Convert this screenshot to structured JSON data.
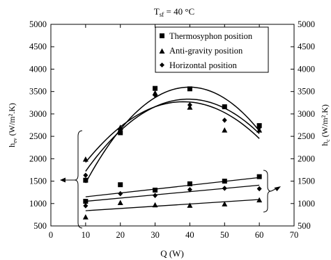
{
  "chart_data": {
    "type": "scatter",
    "title": "T",
    "title_subscript": "sf",
    "title_rest": " = 40 °C",
    "xlabel": "Q (W)",
    "ylabel_left": "h",
    "ylabel_left_sub": "ev",
    "ylabel_left_rest": " (W/m².K)",
    "ylabel_right": "h",
    "ylabel_right_sub": "c",
    "ylabel_right_rest": " (W/m².K)",
    "xlim": [
      0,
      70
    ],
    "ylim": [
      500,
      5000
    ],
    "x_ticks": [
      0,
      10,
      20,
      30,
      40,
      50,
      60,
      70
    ],
    "y_ticks": [
      500,
      1000,
      1500,
      2000,
      2500,
      3000,
      3500,
      4000,
      4500,
      5000
    ],
    "grid": false,
    "legend_position": "top-right",
    "series": [
      {
        "name": "Thermosyphon position",
        "marker": "square",
        "evaporator": {
          "x": [
            10,
            20,
            30,
            40,
            50,
            60
          ],
          "y": [
            1520,
            2580,
            3570,
            3560,
            3160,
            2740
          ]
        },
        "condenser": {
          "x": [
            10,
            20,
            30,
            40,
            50,
            60
          ],
          "y": [
            1050,
            1420,
            1300,
            1440,
            1500,
            1600
          ]
        }
      },
      {
        "name": "Anti-gravity position",
        "marker": "triangle",
        "evaporator": {
          "x": [
            10,
            20,
            30,
            40,
            50,
            60
          ],
          "y": [
            1990,
            2700,
            3470,
            3150,
            2640,
            2640
          ]
        },
        "condenser": {
          "x": [
            10,
            20,
            30,
            40,
            50,
            60
          ],
          "y": [
            700,
            1020,
            970,
            960,
            990,
            1080
          ]
        }
      },
      {
        "name": "Horizontal position",
        "marker": "diamond",
        "evaporator": {
          "x": [
            10,
            20,
            30,
            40,
            50,
            60
          ],
          "y": [
            1630,
            2650,
            3420,
            3200,
            2860,
            2700
          ]
        },
        "condenser": {
          "x": [
            10,
            20,
            30,
            40,
            50,
            60
          ],
          "y": [
            950,
            1220,
            1180,
            1310,
            1340,
            1330
          ]
        }
      }
    ],
    "fit_curves": [
      {
        "kind": "quadratic",
        "through": [
          [
            10,
            1460
          ],
          [
            38,
            3590
          ],
          [
            60,
            2620
          ]
        ]
      },
      {
        "kind": "quadratic",
        "through": [
          [
            10,
            1920
          ],
          [
            37,
            3270
          ],
          [
            60,
            2450
          ]
        ]
      },
      {
        "kind": "quadratic",
        "through": [
          [
            10,
            1720
          ],
          [
            39,
            3330
          ],
          [
            60,
            2560
          ]
        ]
      }
    ],
    "fit_lines": [
      {
        "x": [
          10,
          60
        ],
        "y": [
          1150,
          1580
        ]
      },
      {
        "x": [
          10,
          60
        ],
        "y": [
          1050,
          1410
        ]
      },
      {
        "x": [
          10,
          60
        ],
        "y": [
          840,
          1090
        ]
      }
    ]
  }
}
